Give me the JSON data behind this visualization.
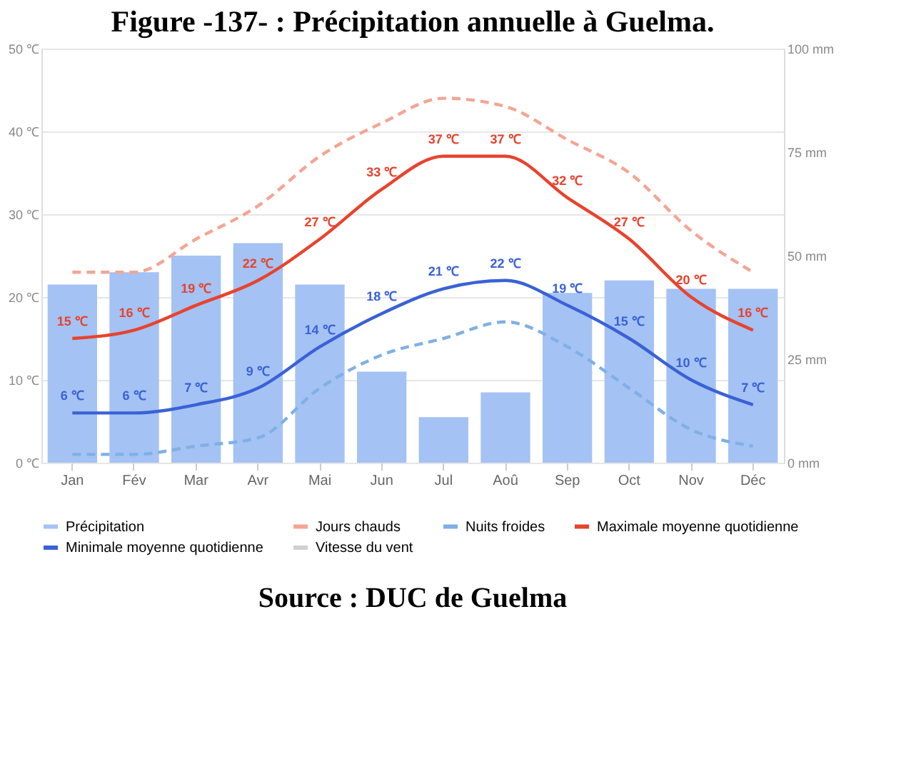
{
  "chart_data": {
    "type": "line",
    "title": "Figure -137- : Précipitation annuelle à Guelma.",
    "categories": [
      "Jan",
      "Fév",
      "Mar",
      "Avr",
      "Mai",
      "Jun",
      "Jul",
      "Aoû",
      "Sep",
      "Oct",
      "Nov",
      "Déc"
    ],
    "series": [
      {
        "name": "Précipitation",
        "type": "bar",
        "axis": "y2",
        "color": "#a4c2f4",
        "values": [
          43,
          46,
          50,
          53,
          43,
          22,
          11,
          17,
          41,
          44,
          42,
          42
        ]
      },
      {
        "name": "Maximale moyenne quotidienne",
        "color": "#e8432d",
        "line_style": "solid",
        "values": [
          15,
          16,
          19,
          22,
          27,
          33,
          37,
          37,
          32,
          27,
          20,
          16
        ],
        "value_labels": [
          "15 ℃",
          "16 ℃",
          "19 ℃",
          "22 ℃",
          "27 ℃",
          "33 ℃",
          "37 ℃",
          "37 ℃",
          "32 ℃",
          "27 ℃",
          "20 ℃",
          "16 ℃"
        ]
      },
      {
        "name": "Jours chauds",
        "color": "#f4a594",
        "line_style": "dashed",
        "values": [
          23,
          23,
          27,
          31,
          37,
          41,
          44,
          43,
          39,
          35,
          28,
          23
        ]
      },
      {
        "name": "Minimale moyenne quotidienne",
        "color": "#3a62d6",
        "line_style": "solid",
        "values": [
          6,
          6,
          7,
          9,
          14,
          18,
          21,
          22,
          19,
          15,
          10,
          7
        ],
        "value_labels": [
          "6 ℃",
          "6 ℃",
          "7 ℃",
          "9 ℃",
          "14 ℃",
          "18 ℃",
          "21 ℃",
          "22 ℃",
          "19 ℃",
          "15 ℃",
          "10 ℃",
          "7 ℃"
        ]
      },
      {
        "name": "Nuits froides",
        "color": "#7fb0e6",
        "line_style": "dashed",
        "values": [
          1,
          1,
          2,
          3,
          9,
          13,
          15,
          17,
          14,
          9,
          4,
          2
        ]
      },
      {
        "name": "Vitesse du vent",
        "color": "#d0d0d0",
        "line_style": "solid",
        "values": [
          null,
          null,
          null,
          null,
          null,
          null,
          null,
          null,
          null,
          null,
          null,
          null
        ]
      }
    ],
    "ylim": [
      0,
      50
    ],
    "yticks": [
      {
        "value": 0,
        "label": "0 ℃"
      },
      {
        "value": 10,
        "label": "10 ℃"
      },
      {
        "value": 20,
        "label": "20 ℃"
      },
      {
        "value": 30,
        "label": "30 ℃"
      },
      {
        "value": 40,
        "label": "40 ℃"
      },
      {
        "value": 50,
        "label": "50 ℃"
      }
    ],
    "y2lim": [
      0,
      100
    ],
    "y2ticks": [
      {
        "value": 0,
        "label": "0 mm"
      },
      {
        "value": 25,
        "label": "25 mm"
      },
      {
        "value": 50,
        "label": "50 mm"
      },
      {
        "value": 75,
        "label": "75 mm"
      },
      {
        "value": 100,
        "label": "100 mm"
      }
    ],
    "grid": "y",
    "legend": "bottom",
    "annotations": [
      "Source : DUC de Guelma"
    ]
  }
}
